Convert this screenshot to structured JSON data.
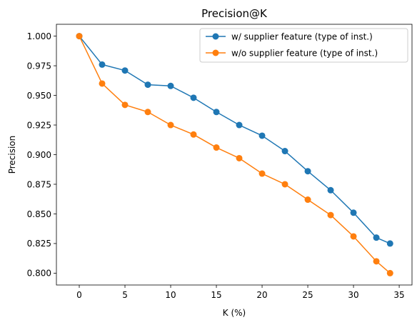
{
  "chart_data": {
    "type": "line",
    "title": "Precision@K",
    "xlabel": "K (%)",
    "ylabel": "Precision",
    "xlim": [
      -2.5,
      36.4
    ],
    "ylim": [
      0.79,
      1.01
    ],
    "xticks": [
      "0",
      "5",
      "10",
      "15",
      "20",
      "25",
      "30",
      "35"
    ],
    "xtick_values": [
      0,
      5,
      10,
      15,
      20,
      25,
      30,
      35
    ],
    "yticks": [
      "0.800",
      "0.825",
      "0.850",
      "0.875",
      "0.900",
      "0.925",
      "0.950",
      "0.975",
      "1.000"
    ],
    "ytick_values": [
      0.8,
      0.825,
      0.85,
      0.875,
      0.9,
      0.925,
      0.95,
      0.975,
      1.0
    ],
    "grid": false,
    "legend_position": "top-right",
    "x": [
      0,
      2.5,
      5,
      7.5,
      10,
      12.5,
      15,
      17.5,
      20,
      22.5,
      25,
      27.5,
      30,
      32.5,
      34
    ],
    "series": [
      {
        "name": "w/ supplier feature (type of inst.)",
        "color": "#1f77b4",
        "values": [
          1.0,
          0.976,
          0.971,
          0.959,
          0.958,
          0.948,
          0.936,
          0.925,
          0.916,
          0.903,
          0.886,
          0.87,
          0.851,
          0.83,
          0.825
        ]
      },
      {
        "name": "w/o supplier feature (type of inst.)",
        "color": "#ff7f0e",
        "values": [
          1.0,
          0.96,
          0.942,
          0.936,
          0.925,
          0.917,
          0.906,
          0.897,
          0.884,
          0.875,
          0.862,
          0.849,
          0.831,
          0.81,
          0.8
        ]
      }
    ]
  }
}
